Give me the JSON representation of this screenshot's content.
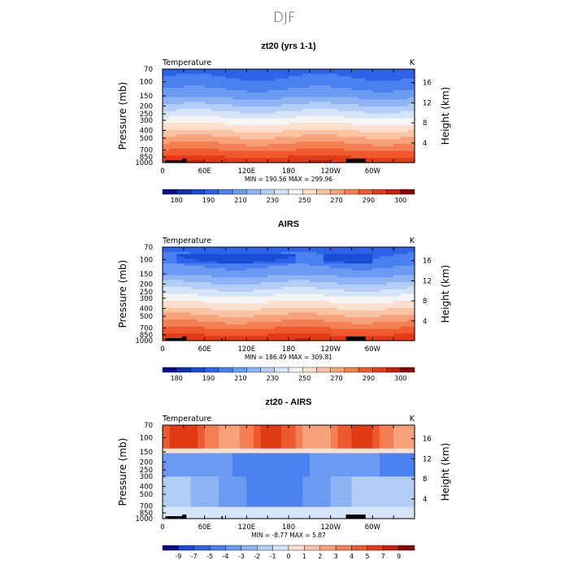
{
  "figure_title": "DJF",
  "colors": {
    "palette": [
      "#08088b",
      "#0f2fb3",
      "#1c4ad6",
      "#2d63e8",
      "#4a80f0",
      "#6b9af2",
      "#8fb4f4",
      "#b3cdf6",
      "#d6e4f9",
      "#f5f5f5",
      "#fbe0cf",
      "#f9c3a4",
      "#f7a27a",
      "#f47f52",
      "#ee5a2d",
      "#e23a15",
      "#c42005",
      "#8b0000"
    ],
    "axis": "#000000",
    "terrain": "#000000"
  },
  "chart_data": [
    {
      "type": "contour",
      "title": "zt20 (yrs 1-1)",
      "left_label": "Temperature",
      "units": "K",
      "ylabel": "Pressure (mb)",
      "ylabel_right": "Height (km)",
      "pressure_ticks": [
        "70",
        "100",
        "150",
        "200",
        "250",
        "300",
        "400",
        "500",
        "700",
        "850",
        "1000"
      ],
      "pressure_values": [
        70,
        100,
        150,
        200,
        250,
        300,
        400,
        500,
        700,
        850,
        1000
      ],
      "height_ticks": [
        "16",
        "12",
        "8",
        "4"
      ],
      "height_values": [
        16,
        12,
        8,
        4
      ],
      "xticks": [
        "0",
        "60E",
        "120E",
        "180",
        "120W",
        "60W"
      ],
      "xvalues": [
        0,
        60,
        120,
        180,
        240,
        300
      ],
      "xlim": [
        0,
        360
      ],
      "stats": "MIN = 190.56   MAX = 299.96",
      "min": 190.56,
      "max": 299.96,
      "colorbar_labels": [
        "180",
        "190",
        "210",
        "230",
        "250",
        "270",
        "290",
        "300"
      ],
      "field": "temperature"
    },
    {
      "type": "contour",
      "title": "AIRS",
      "left_label": "Temperature",
      "units": "K",
      "ylabel": "Pressure (mb)",
      "ylabel_right": "Height (km)",
      "pressure_ticks": [
        "70",
        "100",
        "150",
        "200",
        "250",
        "300",
        "400",
        "500",
        "700",
        "850",
        "1000"
      ],
      "pressure_values": [
        70,
        100,
        150,
        200,
        250,
        300,
        400,
        500,
        700,
        850,
        1000
      ],
      "height_ticks": [
        "16",
        "12",
        "8",
        "4"
      ],
      "height_values": [
        16,
        12,
        8,
        4
      ],
      "xticks": [
        "0",
        "60E",
        "120E",
        "180",
        "120W",
        "60W"
      ],
      "xvalues": [
        0,
        60,
        120,
        180,
        240,
        300
      ],
      "xlim": [
        0,
        360
      ],
      "stats": "MIN = 186.49   MAX = 309.81",
      "min": 186.49,
      "max": 309.81,
      "colorbar_labels": [
        "180",
        "190",
        "210",
        "230",
        "250",
        "270",
        "290",
        "300"
      ],
      "field": "temperature"
    },
    {
      "type": "contour",
      "title": "zt20 - AIRS",
      "left_label": "Temperature",
      "units": "K",
      "ylabel": "Pressure (mb)",
      "ylabel_right": "Height (km)",
      "pressure_ticks": [
        "70",
        "100",
        "150",
        "200",
        "250",
        "300",
        "400",
        "500",
        "700",
        "850",
        "1000"
      ],
      "pressure_values": [
        70,
        100,
        150,
        200,
        250,
        300,
        400,
        500,
        700,
        850,
        1000
      ],
      "height_ticks": [
        "16",
        "12",
        "8",
        "4"
      ],
      "height_values": [
        16,
        12,
        8,
        4
      ],
      "xticks": [
        "0",
        "60E",
        "120E",
        "180",
        "120W",
        "60W"
      ],
      "xvalues": [
        0,
        60,
        120,
        180,
        240,
        300
      ],
      "xlim": [
        0,
        360
      ],
      "stats": "MIN =   -8.77   MAX =    5.87",
      "min": -8.77,
      "max": 5.87,
      "colorbar_labels": [
        "-9",
        "-7",
        "-5",
        "-4",
        "-3",
        "-2",
        "-1",
        "0",
        "1",
        "2",
        "3",
        "4",
        "5",
        "7",
        "9"
      ],
      "field": "difference"
    }
  ]
}
